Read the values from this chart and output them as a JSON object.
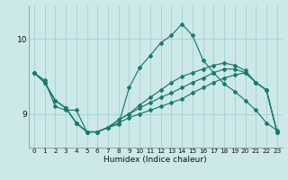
{
  "xlabel": "Humidex (Indice chaleur)",
  "bg_color": "#cce8e8",
  "line_color": "#1a7a6e",
  "grid_color": "#aad4d4",
  "xlim": [
    -0.5,
    23.5
  ],
  "ylim": [
    8.55,
    10.45
  ],
  "yticks": [
    9,
    10
  ],
  "xticks": [
    0,
    1,
    2,
    3,
    4,
    5,
    6,
    7,
    8,
    9,
    10,
    11,
    12,
    13,
    14,
    15,
    16,
    17,
    18,
    19,
    20,
    21,
    22,
    23
  ],
  "curves": [
    [
      9.55,
      9.45,
      9.1,
      9.05,
      9.05,
      8.76,
      8.76,
      8.82,
      8.86,
      9.35,
      9.62,
      9.78,
      9.95,
      10.05,
      10.2,
      10.05,
      9.72,
      9.55,
      9.4,
      9.3,
      9.18,
      9.05,
      8.88,
      8.78
    ],
    [
      9.55,
      9.42,
      9.18,
      9.08,
      8.88,
      8.76,
      8.76,
      8.82,
      8.88,
      8.95,
      9.0,
      9.05,
      9.1,
      9.15,
      9.2,
      9.28,
      9.35,
      9.42,
      9.48,
      9.52,
      9.55,
      9.42,
      9.32,
      8.76
    ],
    [
      9.55,
      9.42,
      9.18,
      9.08,
      8.88,
      8.76,
      8.76,
      8.82,
      8.92,
      9.0,
      9.08,
      9.15,
      9.22,
      9.28,
      9.35,
      9.42,
      9.48,
      9.55,
      9.6,
      9.6,
      9.55,
      9.42,
      9.32,
      8.76
    ],
    [
      9.55,
      9.42,
      9.18,
      9.08,
      8.88,
      8.76,
      8.76,
      8.82,
      8.92,
      9.0,
      9.12,
      9.22,
      9.32,
      9.42,
      9.5,
      9.55,
      9.6,
      9.65,
      9.68,
      9.65,
      9.58,
      9.42,
      9.32,
      8.76
    ]
  ]
}
